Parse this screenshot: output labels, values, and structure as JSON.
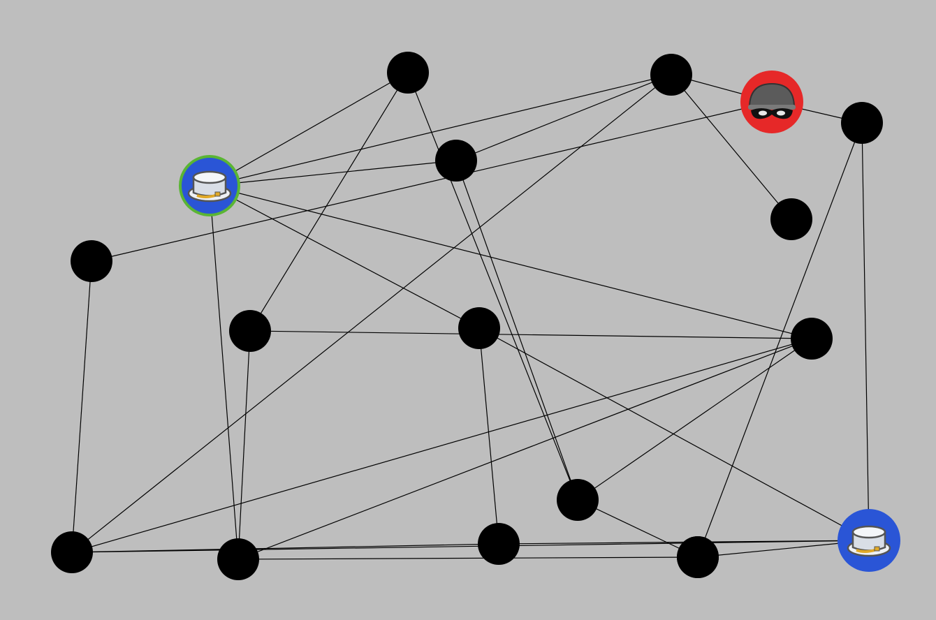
{
  "game": {
    "background_color": "#bebebe",
    "node_color": "#000000",
    "edge_color": "#000000",
    "police_color": "#2a55d6",
    "thief_color": "#e62828",
    "selected_ring_color": "#5ab534",
    "police_icon": "police-cap-icon",
    "thief_icon": "masked-thief-icon"
  },
  "nodes": [
    {
      "id": "n1",
      "role": "empty"
    },
    {
      "id": "n2",
      "role": "empty"
    },
    {
      "id": "n3",
      "role": "thief"
    },
    {
      "id": "n4",
      "role": "empty"
    },
    {
      "id": "n5",
      "role": "police",
      "selected": true
    },
    {
      "id": "n6",
      "role": "empty"
    },
    {
      "id": "n7",
      "role": "empty"
    },
    {
      "id": "n8",
      "role": "empty"
    },
    {
      "id": "n9",
      "role": "empty"
    },
    {
      "id": "n10",
      "role": "empty"
    },
    {
      "id": "n11",
      "role": "empty"
    },
    {
      "id": "n12",
      "role": "empty"
    },
    {
      "id": "n13",
      "role": "empty"
    },
    {
      "id": "n14",
      "role": "empty"
    },
    {
      "id": "n15",
      "role": "empty"
    },
    {
      "id": "n16",
      "role": "empty"
    },
    {
      "id": "n17",
      "role": "empty"
    },
    {
      "id": "n18",
      "role": "police",
      "selected": false
    }
  ],
  "edges": [
    [
      "n1",
      "n5"
    ],
    [
      "n1",
      "n9"
    ],
    [
      "n1",
      "n15"
    ],
    [
      "n2",
      "n6"
    ],
    [
      "n2",
      "n5"
    ],
    [
      "n2",
      "n7"
    ],
    [
      "n2",
      "n12"
    ],
    [
      "n2",
      "n3"
    ],
    [
      "n3",
      "n8"
    ],
    [
      "n3",
      "n4"
    ],
    [
      "n4",
      "n16"
    ],
    [
      "n4",
      "n18"
    ],
    [
      "n5",
      "n6"
    ],
    [
      "n5",
      "n10"
    ],
    [
      "n5",
      "n11"
    ],
    [
      "n5",
      "n13"
    ],
    [
      "n6",
      "n15"
    ],
    [
      "n8",
      "n12"
    ],
    [
      "n9",
      "n11"
    ],
    [
      "n9",
      "n13"
    ],
    [
      "n10",
      "n14"
    ],
    [
      "n10",
      "n18"
    ],
    [
      "n11",
      "n12"
    ],
    [
      "n11",
      "n13"
    ],
    [
      "n11",
      "n15"
    ],
    [
      "n12",
      "n14"
    ],
    [
      "n12",
      "n17"
    ],
    [
      "n13",
      "n16"
    ],
    [
      "n14",
      "n18"
    ],
    [
      "n15",
      "n16"
    ],
    [
      "n16",
      "n17"
    ]
  ]
}
